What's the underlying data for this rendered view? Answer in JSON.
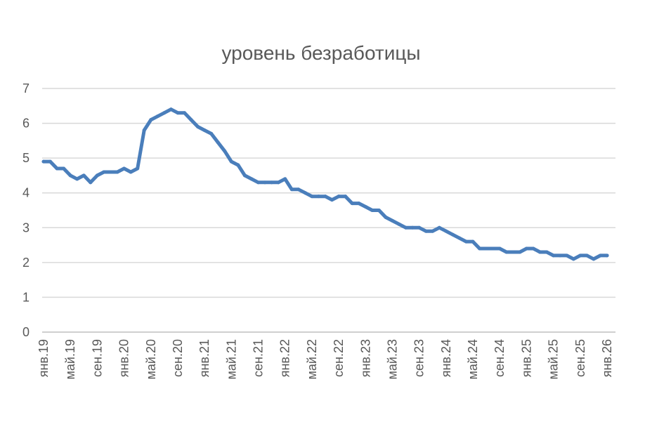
{
  "chart_data": {
    "type": "line",
    "title": "уровень безработицы",
    "xlabel": "",
    "ylabel": "",
    "ylim": [
      0,
      7
    ],
    "y_ticks": [
      0,
      1,
      2,
      3,
      4,
      5,
      6,
      7
    ],
    "grid": true,
    "legend": "none",
    "line_color": "#4a7ebb",
    "grid_color": "#d9d9d9",
    "text_color": "#595959",
    "x_tick_labels": [
      "янв.19",
      "май.19",
      "сен.19",
      "янв.20",
      "май.20",
      "сен.20",
      "янв.21",
      "май.21",
      "сен.21",
      "янв.22",
      "май.22",
      "сен.22",
      "янв.23",
      "май.23",
      "сен.23",
      "янв.24",
      "май.24",
      "сен.24",
      "янв.25",
      "май.25",
      "сен.25",
      "янв.26"
    ],
    "series": [
      {
        "values": [
          4.9,
          4.9,
          4.7,
          4.7,
          4.5,
          4.4,
          4.5,
          4.3,
          4.5,
          4.6,
          4.6,
          4.6,
          4.7,
          4.6,
          4.7,
          5.8,
          6.1,
          6.2,
          6.3,
          6.4,
          6.3,
          6.3,
          6.1,
          5.9,
          5.8,
          5.7,
          5.45,
          5.2,
          4.9,
          4.8,
          4.5,
          4.4,
          4.3,
          4.3,
          4.3,
          4.3,
          4.4,
          4.1,
          4.1,
          4.0,
          3.9,
          3.9,
          3.9,
          3.8,
          3.9,
          3.9,
          3.7,
          3.7,
          3.6,
          3.5,
          3.5,
          3.3,
          3.2,
          3.1,
          3.0,
          3.0,
          3.0,
          2.9,
          2.9,
          3.0,
          2.9,
          2.8,
          2.7,
          2.6,
          2.6,
          2.4,
          2.4,
          2.4,
          2.4,
          2.3,
          2.3,
          2.3,
          2.4,
          2.4,
          2.3,
          2.3,
          2.2,
          2.2,
          2.2,
          2.1,
          2.2,
          2.2,
          2.1,
          2.2,
          2.2
        ]
      }
    ]
  }
}
